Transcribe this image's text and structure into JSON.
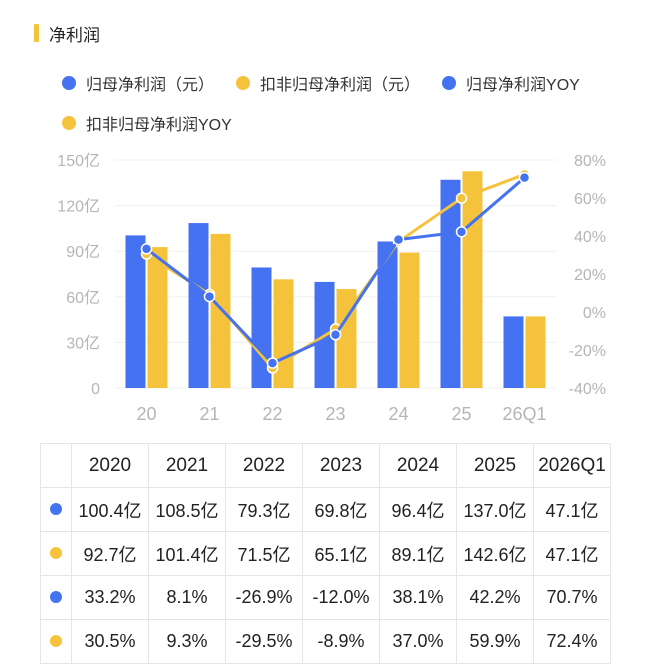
{
  "header": {
    "title": "净利润"
  },
  "colors": {
    "blue": "#4472f0",
    "yellow": "#f5c33b"
  },
  "legend": [
    {
      "label": "归母净利润（元）",
      "color": "#4472f0"
    },
    {
      "label": "扣非归母净利润（元）",
      "color": "#f5c33b"
    },
    {
      "label": "归母净利润YOY",
      "color": "#4472f0"
    },
    {
      "label": "扣非归母净利润YOY",
      "color": "#f5c33b"
    }
  ],
  "chart_data": {
    "type": "bar",
    "categories": [
      "20",
      "21",
      "22",
      "23",
      "24",
      "25",
      "26Q1"
    ],
    "series": [
      {
        "name": "归母净利润（元）",
        "kind": "bar",
        "axis": "left",
        "color": "#4472f0",
        "values": [
          100.4,
          108.5,
          79.3,
          69.8,
          96.4,
          137.0,
          47.1
        ]
      },
      {
        "name": "扣非归母净利润（元）",
        "kind": "bar",
        "axis": "left",
        "color": "#f5c33b",
        "values": [
          92.7,
          101.4,
          71.5,
          65.1,
          89.1,
          142.6,
          47.1
        ]
      },
      {
        "name": "归母净利润YOY",
        "kind": "line",
        "axis": "right",
        "color": "#4472f0",
        "values": [
          33.2,
          8.1,
          -26.9,
          -12.0,
          38.1,
          42.2,
          70.7
        ]
      },
      {
        "name": "扣非归母净利润YOY",
        "kind": "line",
        "axis": "right",
        "color": "#f5c33b",
        "values": [
          30.5,
          9.3,
          -29.5,
          -8.9,
          37.0,
          59.9,
          72.4
        ]
      }
    ],
    "ylim_left": [
      0,
      150
    ],
    "ylim_right": [
      -40,
      80
    ],
    "left_ticks": [
      {
        "value": 0,
        "label": "0"
      },
      {
        "value": 30,
        "label": "30亿"
      },
      {
        "value": 60,
        "label": "60亿"
      },
      {
        "value": 90,
        "label": "90亿"
      },
      {
        "value": 120,
        "label": "120亿"
      },
      {
        "value": 150,
        "label": "150亿"
      }
    ],
    "right_ticks": [
      {
        "value": -40,
        "label": "-40%"
      },
      {
        "value": -20,
        "label": "-20%"
      },
      {
        "value": 0,
        "label": "0%"
      },
      {
        "value": 20,
        "label": "20%"
      },
      {
        "value": 40,
        "label": "40%"
      },
      {
        "value": 60,
        "label": "60%"
      },
      {
        "value": 80,
        "label": "80%"
      }
    ],
    "grid": true
  },
  "table": {
    "headers": [
      "2020",
      "2021",
      "2022",
      "2023",
      "2024",
      "2025",
      "2026Q1"
    ],
    "rows": [
      {
        "color": "#4472f0",
        "cells": [
          "100.4亿",
          "108.5亿",
          "79.3亿",
          "69.8亿",
          "96.4亿",
          "137.0亿",
          "47.1亿"
        ]
      },
      {
        "color": "#f5c33b",
        "cells": [
          "92.7亿",
          "101.4亿",
          "71.5亿",
          "65.1亿",
          "89.1亿",
          "142.6亿",
          "47.1亿"
        ]
      },
      {
        "color": "#4472f0",
        "cells": [
          "33.2%",
          "8.1%",
          "-26.9%",
          "-12.0%",
          "38.1%",
          "42.2%",
          "70.7%"
        ]
      },
      {
        "color": "#f5c33b",
        "cells": [
          "30.5%",
          "9.3%",
          "-29.5%",
          "-8.9%",
          "37.0%",
          "59.9%",
          "72.4%"
        ]
      }
    ]
  }
}
